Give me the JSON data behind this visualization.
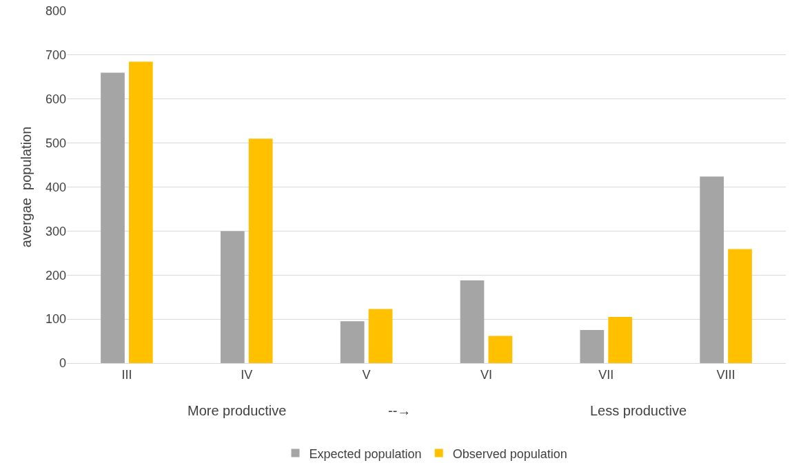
{
  "chart_data": {
    "type": "bar",
    "ylabel": "avergae  population",
    "categories": [
      "III",
      "IV",
      "V",
      "VI",
      "VII",
      "VIII"
    ],
    "series": [
      {
        "name": "Expected population",
        "color": "#a5a5a5",
        "values": [
          660,
          300,
          95,
          188,
          75,
          424
        ]
      },
      {
        "name": "Observed population",
        "color": "#ffc000",
        "values": [
          685,
          510,
          123,
          62,
          105,
          259
        ]
      }
    ],
    "ylim": [
      0,
      800
    ],
    "yticks": [
      0,
      100,
      200,
      300,
      400,
      500,
      600,
      700,
      800
    ],
    "grid": "y",
    "legend": "bottom",
    "annotations": [
      "More productive",
      "--→",
      "Less productive"
    ]
  }
}
